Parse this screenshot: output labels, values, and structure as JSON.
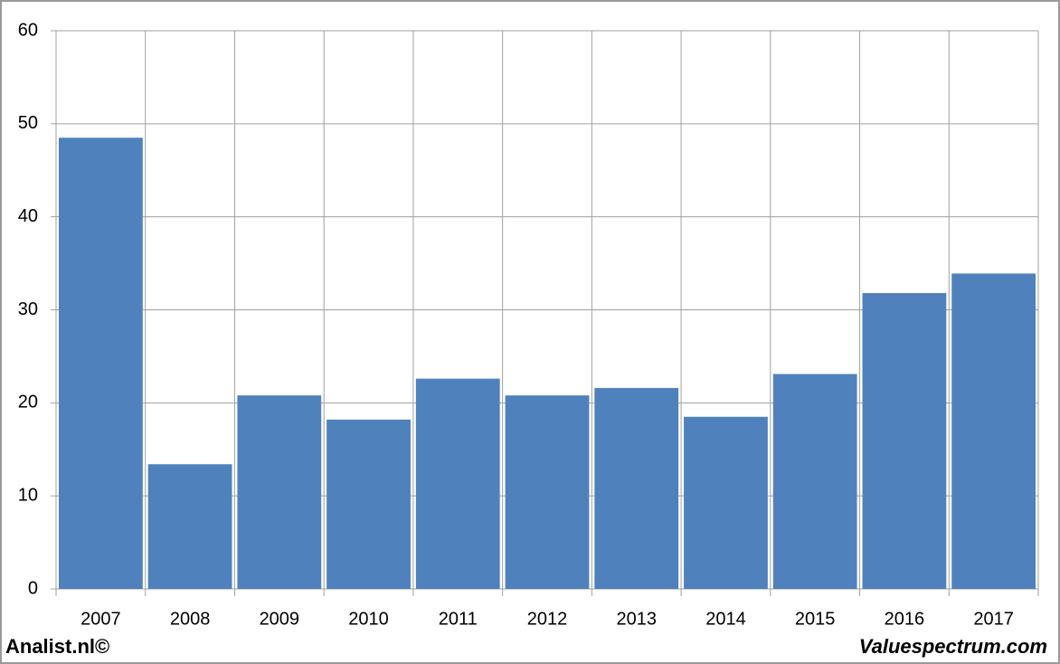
{
  "chart_data": {
    "type": "bar",
    "categories": [
      "2007",
      "2008",
      "2009",
      "2010",
      "2011",
      "2012",
      "2013",
      "2014",
      "2015",
      "2016",
      "2017"
    ],
    "values": [
      48.5,
      13.4,
      20.8,
      18.2,
      22.6,
      20.8,
      21.6,
      18.5,
      23.1,
      31.8,
      33.9
    ],
    "color": "#4f81bd",
    "ylim": [
      0,
      60
    ],
    "yticks": [
      0,
      10,
      20,
      30,
      40,
      50,
      60
    ],
    "grid": true,
    "footer_left": "Analist.nl©",
    "footer_right": "Valuespectrum.com"
  }
}
